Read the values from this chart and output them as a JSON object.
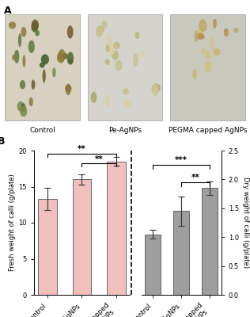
{
  "panel_A_label": "A",
  "panel_B_label": "B",
  "photo_labels": [
    "Control",
    "Pe-AgNPs",
    "PEGMA capped AgNPs"
  ],
  "categories_fresh": [
    "Control",
    "Pe-AgNPs",
    "PEGMA capped\nAgNPs"
  ],
  "categories_dry": [
    "Control",
    "Pe-AgNPs",
    "PEGMA capped\nAgNPs"
  ],
  "fresh_values": [
    13.3,
    16.0,
    18.5
  ],
  "fresh_errors": [
    1.5,
    0.7,
    0.6
  ],
  "dry_values": [
    1.05,
    1.45,
    1.85
  ],
  "dry_errors": [
    0.07,
    0.25,
    0.12
  ],
  "fresh_bar_color": "#f2bfbf",
  "dry_bar_color": "#9e9e9e",
  "fresh_ylim": [
    0,
    20
  ],
  "dry_ylim": [
    0,
    2.5
  ],
  "fresh_ylabel": "Fresh weight of calli (g/plate)",
  "dry_ylabel": "Dry weight of calli (g/plate)",
  "fresh_yticks": [
    0,
    5,
    10,
    15,
    20
  ],
  "dry_yticks": [
    0.0,
    0.5,
    1.0,
    1.5,
    2.0,
    2.5
  ],
  "background_color": "#ffffff",
  "photo_bg_colors": [
    "#c8c0b0",
    "#c8c8b8",
    "#b8b8a8"
  ],
  "photo_border_color": "#aaaaaa"
}
